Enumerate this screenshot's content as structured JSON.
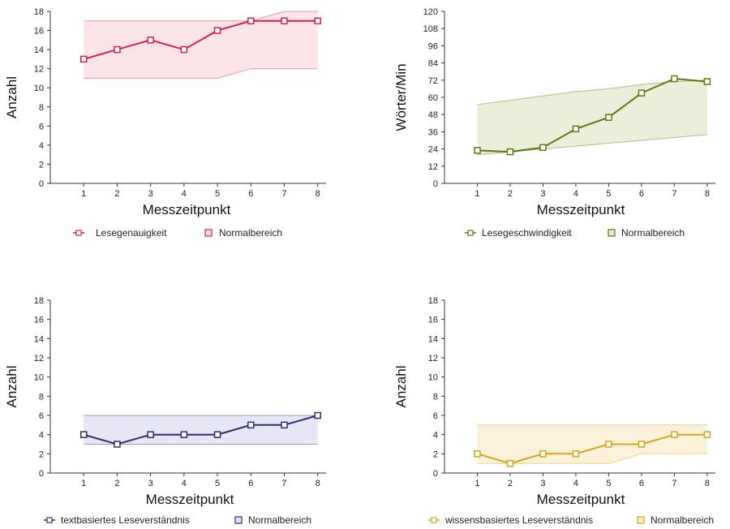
{
  "chart_data": [
    {
      "type": "line",
      "color": "#d0234a",
      "band_fill": "#fbdfe5",
      "x": [
        1,
        2,
        3,
        4,
        5,
        6,
        7,
        8
      ],
      "xlabel": "Messzeitpunkt",
      "ylabel": "Anzahl",
      "ylim": [
        0,
        18
      ],
      "yticks": [
        0,
        2,
        4,
        6,
        8,
        10,
        12,
        14,
        16,
        18
      ],
      "series": [
        {
          "name": "Lesegenauigkeit",
          "values": [
            13,
            14,
            15,
            14,
            16,
            17,
            17,
            17
          ]
        }
      ],
      "band": {
        "name": "Normalbereich",
        "lower": [
          11,
          11,
          11,
          11,
          11,
          12,
          12,
          12
        ],
        "upper": [
          17,
          17,
          17,
          17,
          17,
          17,
          18,
          18
        ]
      },
      "legend": [
        "Lesegenauigkeit",
        "Normalbereich"
      ]
    },
    {
      "type": "line",
      "color": "#5a7a12",
      "band_fill": "#e7ecd2",
      "x": [
        1,
        2,
        3,
        4,
        5,
        6,
        7,
        8
      ],
      "xlabel": "Messzeitpunkt",
      "ylabel": "Wörter/Min",
      "ylim": [
        0,
        120
      ],
      "yticks": [
        0,
        12,
        24,
        36,
        48,
        60,
        72,
        84,
        96,
        108,
        120
      ],
      "series": [
        {
          "name": "Lesegeschwindigkeit",
          "values": [
            23,
            22,
            25,
            38,
            46,
            63,
            73,
            71
          ]
        }
      ],
      "band": {
        "name": "Normalbereich",
        "lower": [
          20,
          22,
          24,
          26,
          28,
          30,
          32,
          34
        ],
        "upper": [
          55,
          58,
          61,
          64,
          66,
          69,
          71,
          72
        ]
      },
      "legend": [
        "Lesegeschwindigkeit",
        "Normalbereich"
      ]
    },
    {
      "type": "line",
      "color": "#2d2d6e",
      "band_fill": "#e2e2f3",
      "x": [
        1,
        2,
        3,
        4,
        5,
        6,
        7,
        8
      ],
      "xlabel": "Messzeitpunkt",
      "ylabel": "Anzahl",
      "ylim": [
        0,
        18
      ],
      "yticks": [
        0,
        2,
        4,
        6,
        8,
        10,
        12,
        14,
        16,
        18
      ],
      "series": [
        {
          "name": "textbasiertes Leseverständnis",
          "values": [
            4,
            3,
            4,
            4,
            4,
            5,
            5,
            6
          ]
        }
      ],
      "band": {
        "name": "Normalbereich",
        "lower": [
          3,
          3,
          3,
          3,
          3,
          3,
          3,
          3
        ],
        "upper": [
          6,
          6,
          6,
          6,
          6,
          6,
          6,
          6
        ]
      },
      "legend": [
        "textbasiertes Leseverständnis",
        "Normalbereich"
      ]
    },
    {
      "type": "line",
      "color": "#d4a516",
      "band_fill": "#fbf0d6",
      "x": [
        1,
        2,
        3,
        4,
        5,
        6,
        7,
        8
      ],
      "xlabel": "Messzeitpunkt",
      "ylabel": "Anzahl",
      "ylim": [
        0,
        18
      ],
      "yticks": [
        0,
        2,
        4,
        6,
        8,
        10,
        12,
        14,
        16,
        18
      ],
      "series": [
        {
          "name": "wissensbasiertes Leseverständnis",
          "values": [
            2,
            1,
            2,
            2,
            3,
            3,
            4,
            4
          ]
        }
      ],
      "band": {
        "name": "Normalbereich",
        "lower": [
          1,
          1,
          1,
          1,
          1,
          2,
          2,
          2
        ],
        "upper": [
          5,
          5,
          5,
          5,
          5,
          5,
          5,
          5
        ]
      },
      "legend": [
        "wissensbasiertes Leseverständnis",
        "Normalbereich"
      ]
    }
  ]
}
